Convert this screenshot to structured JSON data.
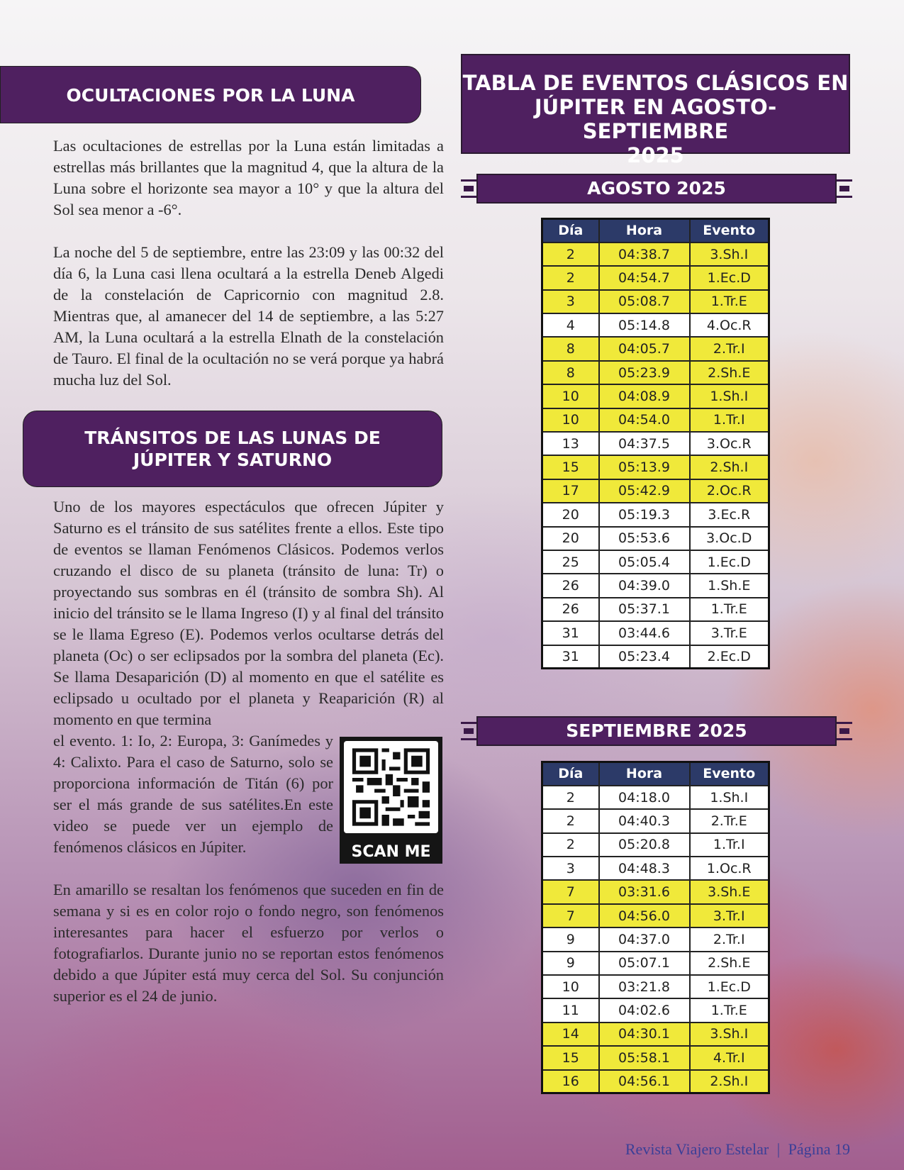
{
  "left": {
    "occ_title": "OCULTACIONES POR LA LUNA",
    "occ_p1": "Las ocultaciones de estrellas por la Luna están limitadas a estrellas más brillantes que la magnitud 4, que la altura de la Luna sobre el horizonte sea mayor a 10° y que la altura del Sol sea menor a -6°.",
    "occ_p2": "La noche del 5 de septiembre, entre las 23:09 y las 00:32 del día 6, la Luna casi llena ocultará a la estrella Deneb Algedi de la constelación de Capricornio con magnitud 2.8. Mientras que, al amanecer del 14 de septiembre, a las 5:27 AM, la Luna ocultará a la estrella Elnath de la constelación de Tauro. El final de la ocultación no se verá porque ya habrá mucha luz del Sol.",
    "tr_title_1": "TRÁNSITOS DE LAS LUNAS DE",
    "tr_title_2": "JÚPITER Y SATURNO",
    "tr_p1": "Uno de los mayores espectáculos que ofrecen Júpiter y Saturno es el tránsito de sus satélites frente a ellos. Este tipo de eventos se llaman Fenómenos Clásicos. Podemos verlos cruzando el disco de su planeta (tránsito de luna: Tr) o proyectando sus sombras en él (tránsito de sombra Sh). Al inicio del tránsito se le llama Ingreso (I) y al final del tránsito se le llama Egreso (E). Podemos verlos ocultarse detrás del planeta (Oc) o ser eclipsados por la sombra del planeta (Ec). Se llama Desaparición (D) al momento en que el satélite es eclipsado u ocultado por el planeta y Reaparición (R) al momento en que termina",
    "tr_p1b": "el evento. 1: Io, 2: Europa, 3: Ganímedes y 4: Calixto. Para el caso de Saturno, solo se proporciona información de Titán (6) por ser el más grande de sus satélites.En este video se puede ver un ejemplo de fenómenos clásicos en Júpiter.",
    "qr_label": "SCAN ME",
    "tr_p2": "En amarillo se resaltan los fenómenos que suceden en fin de semana y si es en color rojo o fondo negro, son fenómenos interesantes para hacer el esfuerzo por verlos o fotografiarlos. Durante junio no se reportan estos fenómenos debido a que Júpiter está muy cerca del Sol. Su conjunción superior es el 24 de junio."
  },
  "right": {
    "title_1": "TABLA DE EVENTOS CLÁSICOS EN",
    "title_2": "JÚPITER EN AGOSTO-SEPTIEMBRE",
    "title_3": "2025",
    "headers": [
      "Día",
      "Hora",
      "Evento"
    ],
    "highlight_color": "#f0e93a",
    "august": {
      "label": "AGOSTO 2025",
      "rows": [
        [
          "2",
          "04:38.7",
          "3.Sh.I",
          true
        ],
        [
          "2",
          "04:54.7",
          "1.Ec.D",
          true
        ],
        [
          "3",
          "05:08.7",
          "1.Tr.E",
          true
        ],
        [
          "4",
          "05:14.8",
          "4.Oc.R",
          false
        ],
        [
          "8",
          "04:05.7",
          "2.Tr.I",
          true
        ],
        [
          "8",
          "05:23.9",
          "2.Sh.E",
          true
        ],
        [
          "10",
          "04:08.9",
          "1.Sh.I",
          true
        ],
        [
          "10",
          "04:54.0",
          "1.Tr.I",
          true
        ],
        [
          "13",
          "04:37.5",
          "3.Oc.R",
          false
        ],
        [
          "15",
          "05:13.9",
          "2.Sh.I",
          true
        ],
        [
          "17",
          "05:42.9",
          "2.Oc.R",
          true
        ],
        [
          "20",
          "05:19.3",
          "3.Ec.R",
          false
        ],
        [
          "20",
          "05:53.6",
          "3.Oc.D",
          false
        ],
        [
          "25",
          "05:05.4",
          "1.Ec.D",
          false
        ],
        [
          "26",
          "04:39.0",
          "1.Sh.E",
          false
        ],
        [
          "26",
          "05:37.1",
          "1.Tr.E",
          false
        ],
        [
          "31",
          "03:44.6",
          "3.Tr.E",
          false
        ],
        [
          "31",
          "05:23.4",
          "2.Ec.D",
          false
        ]
      ]
    },
    "september": {
      "label": "SEPTIEMBRE 2025",
      "rows": [
        [
          "2",
          "04:18.0",
          "1.Sh.I",
          false
        ],
        [
          "2",
          "04:40.3",
          "2.Tr.E",
          false
        ],
        [
          "2",
          "05:20.8",
          "1.Tr.I",
          false
        ],
        [
          "3",
          "04:48.3",
          "1.Oc.R",
          false
        ],
        [
          "7",
          "03:31.6",
          "3.Sh.E",
          true
        ],
        [
          "7",
          "04:56.0",
          "3.Tr.I",
          true
        ],
        [
          "9",
          "04:37.0",
          "2.Tr.I",
          false
        ],
        [
          "9",
          "05:07.1",
          "2.Sh.E",
          false
        ],
        [
          "10",
          "03:21.8",
          "1.Ec.D",
          false
        ],
        [
          "11",
          "04:02.6",
          "1.Tr.E",
          false
        ],
        [
          "14",
          "04:30.1",
          "3.Sh.I",
          true
        ],
        [
          "15",
          "05:58.1",
          "4.Tr.I",
          true
        ],
        [
          "16",
          "04:56.1",
          "2.Sh.I",
          true
        ]
      ]
    }
  },
  "footer": {
    "magazine": "Revista Viajero Estelar",
    "separator": "|",
    "page": "Página 19"
  }
}
